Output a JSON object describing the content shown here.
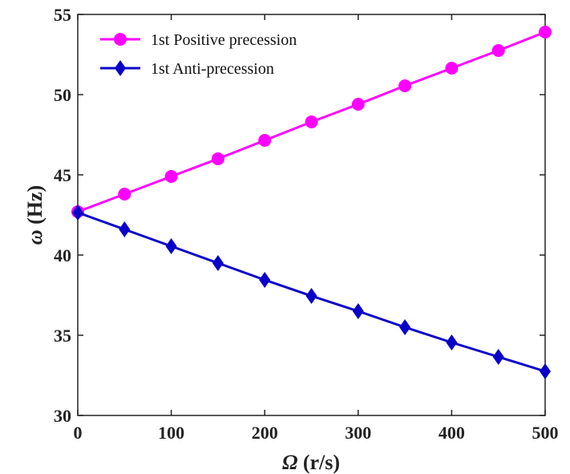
{
  "chart_data": {
    "type": "line",
    "x": [
      0,
      50,
      100,
      150,
      200,
      250,
      300,
      350,
      400,
      450,
      500
    ],
    "series": [
      {
        "name": "1st Positive precession",
        "color": "#ff00ff",
        "marker": "circle",
        "values": [
          42.7,
          43.8,
          44.9,
          46.0,
          47.15,
          48.3,
          49.4,
          50.55,
          51.65,
          52.75,
          53.9
        ]
      },
      {
        "name": "1st Anti-precession",
        "color": "#0a00c8",
        "marker": "diamond",
        "values": [
          42.65,
          41.6,
          40.55,
          39.5,
          38.45,
          37.45,
          36.5,
          35.5,
          34.55,
          33.65,
          32.75
        ]
      }
    ],
    "xlabel_symbol": "Ω",
    "xlabel_unit": " (r/s)",
    "ylabel_symbol": "ω",
    "ylabel_unit": " (Hz)",
    "xlim": [
      0,
      500
    ],
    "ylim": [
      30,
      55
    ],
    "xticks": [
      0,
      100,
      200,
      300,
      400,
      500
    ],
    "yticks": [
      30,
      35,
      40,
      45,
      50,
      55
    ],
    "legend_position": "top-left",
    "grid": false
  }
}
